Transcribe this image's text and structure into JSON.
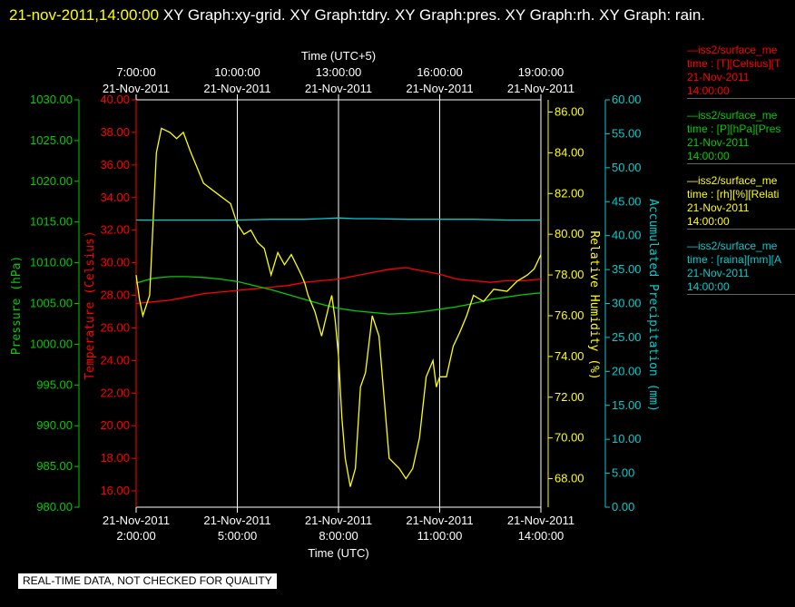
{
  "header": {
    "timestamp": "21-nov-2011,14:00:00",
    "graphs": " XY Graph:xy-grid.  XY Graph:tdry.  XY Graph:pres.  XY Graph:rh.  XY Graph: rain."
  },
  "colors": {
    "temperature": "#ff0000",
    "pressure": "#00cc00",
    "humidity": "#ffff00",
    "precip": "#00cccc",
    "grid": "#ffffff"
  },
  "legends": [
    {
      "name": "—iss2/surface_me",
      "line2": "time : [T][Celsius][T",
      "date": "21-Nov-2011",
      "time": "14:00:00",
      "color": "#ff0000"
    },
    {
      "name": "—iss2/surface_me",
      "line2": "time : [P][hPa][Pres",
      "date": "21-Nov-2011",
      "time": "14:00:00",
      "color": "#00cc00"
    },
    {
      "name": "—iss2/surface_me",
      "line2": "time : [rh][%][Relati",
      "date": "21-Nov-2011",
      "time": "14:00:00",
      "color": "#ffff00"
    },
    {
      "name": "—iss2/surface_me",
      "line2": "time : [raina][mm][A",
      "date": "21-Nov-2011",
      "time": "14:00:00",
      "color": "#00cccc"
    }
  ],
  "footer_note": "REAL-TIME DATA, NOT CHECKED FOR QUALITY",
  "chart_data": {
    "type": "line",
    "x_top_label": "Time (UTC+5)",
    "x_bottom_label": "Time (UTC)",
    "x_range_utc_hours": [
      2.0,
      14.0
    ],
    "x_ticks_bottom": [
      {
        "date": "21-Nov-2011",
        "time": "2:00:00",
        "utc_hour": 2
      },
      {
        "date": "21-Nov-2011",
        "time": "5:00:00",
        "utc_hour": 5
      },
      {
        "date": "21-Nov-2011",
        "time": "8:00:00",
        "utc_hour": 8
      },
      {
        "date": "21-Nov-2011",
        "time": "11:00:00",
        "utc_hour": 11
      },
      {
        "date": "21-Nov-2011",
        "time": "14:00:00",
        "utc_hour": 14
      }
    ],
    "x_ticks_top": [
      {
        "date": "21-Nov-2011",
        "time": "7:00:00",
        "utc_hour": 2
      },
      {
        "date": "21-Nov-2011",
        "time": "10:00:00",
        "utc_hour": 5
      },
      {
        "date": "21-Nov-2011",
        "time": "13:00:00",
        "utc_hour": 8
      },
      {
        "date": "21-Nov-2011",
        "time": "16:00:00",
        "utc_hour": 11
      },
      {
        "date": "21-Nov-2011",
        "time": "19:00:00",
        "utc_hour": 14
      }
    ],
    "axes": {
      "pressure": {
        "label": "Pressure (hPa)",
        "range": [
          980,
          1030
        ],
        "ticks": [
          "980.00",
          "985.00",
          "990.00",
          "995.00",
          "1000.00",
          "1005.00",
          "1010.00",
          "1015.00",
          "1020.00",
          "1025.00",
          "1030.00"
        ]
      },
      "temperature": {
        "label": "Temperature (Celsius)",
        "range": [
          15,
          40
        ],
        "ticks": [
          "16.00",
          "18.00",
          "20.00",
          "22.00",
          "24.00",
          "26.00",
          "28.00",
          "30.00",
          "32.00",
          "34.00",
          "36.00",
          "38.00",
          "40.00"
        ]
      },
      "humidity": {
        "label": "Relative Humidity (%)",
        "range": [
          66.6,
          86.6
        ],
        "ticks": [
          "68.00",
          "70.00",
          "72.00",
          "74.00",
          "76.00",
          "78.00",
          "80.00",
          "82.00",
          "84.00",
          "86.00"
        ]
      },
      "precip": {
        "label": "Accumulated Precipitation (mm)",
        "range": [
          0,
          60
        ],
        "ticks": [
          "0.00",
          "5.00",
          "10.00",
          "15.00",
          "20.00",
          "25.00",
          "30.00",
          "35.00",
          "40.00",
          "45.00",
          "50.00",
          "55.00",
          "60.00"
        ]
      }
    },
    "series": [
      {
        "name": "temperature",
        "axis": "temperature",
        "x": [
          2.0,
          2.5,
          3.0,
          3.5,
          4.0,
          4.5,
          5.0,
          5.5,
          6.0,
          6.5,
          7.0,
          7.5,
          8.0,
          8.5,
          9.0,
          9.5,
          10.0,
          10.5,
          11.0,
          11.5,
          12.0,
          12.5,
          13.0,
          13.5,
          14.0
        ],
        "values": [
          27.5,
          27.6,
          27.7,
          27.9,
          28.1,
          28.2,
          28.3,
          28.4,
          28.5,
          28.6,
          28.8,
          28.9,
          29.0,
          29.2,
          29.4,
          29.6,
          29.7,
          29.5,
          29.3,
          29.0,
          28.9,
          28.8,
          28.9,
          28.9,
          29.0
        ]
      },
      {
        "name": "pressure",
        "axis": "pressure",
        "x": [
          2.0,
          2.5,
          3.0,
          3.5,
          4.0,
          4.5,
          5.0,
          5.5,
          6.0,
          6.5,
          7.0,
          7.5,
          8.0,
          8.5,
          9.0,
          9.5,
          10.0,
          10.5,
          11.0,
          11.5,
          12.0,
          12.5,
          13.0,
          13.5,
          14.0
        ],
        "values": [
          1007.5,
          1008.1,
          1008.3,
          1008.3,
          1008.2,
          1008.0,
          1007.7,
          1007.2,
          1006.7,
          1006.1,
          1005.5,
          1004.9,
          1004.4,
          1004.1,
          1003.9,
          1003.7,
          1003.8,
          1004.0,
          1004.3,
          1004.6,
          1005.0,
          1005.5,
          1005.8,
          1006.1,
          1006.3
        ]
      },
      {
        "name": "humidity",
        "axis": "humidity",
        "x": [
          2.0,
          2.1,
          2.2,
          2.4,
          2.6,
          2.75,
          3.0,
          3.2,
          3.4,
          3.6,
          4.0,
          4.4,
          4.8,
          5.0,
          5.2,
          5.4,
          5.6,
          5.8,
          6.0,
          6.2,
          6.4,
          6.6,
          6.9,
          7.0,
          7.1,
          7.3,
          7.5,
          7.7,
          7.8,
          7.9,
          8.0,
          8.1,
          8.2,
          8.35,
          8.5,
          8.65,
          8.8,
          9.0,
          9.2,
          9.5,
          9.8,
          10.0,
          10.2,
          10.4,
          10.5,
          10.6,
          10.8,
          10.9,
          11.0,
          11.2,
          11.4,
          11.6,
          11.8,
          12.0,
          12.3,
          12.6,
          13.0,
          13.3,
          13.6,
          13.8,
          14.0
        ],
        "values": [
          78.0,
          76.8,
          76.0,
          77.0,
          84.0,
          85.2,
          85.0,
          84.7,
          85.0,
          84.1,
          82.5,
          82.0,
          81.5,
          80.5,
          80.0,
          80.2,
          79.6,
          79.3,
          78.0,
          79.1,
          78.5,
          79.0,
          78.0,
          77.6,
          77.0,
          76.2,
          75.0,
          76.4,
          77.0,
          75.8,
          74.0,
          71.0,
          69.0,
          67.6,
          68.5,
          72.5,
          73.2,
          76.0,
          75.0,
          69.0,
          68.5,
          68.0,
          68.5,
          70.0,
          71.5,
          73.0,
          73.8,
          72.5,
          73.0,
          73.0,
          74.5,
          75.2,
          76.0,
          77.0,
          76.7,
          77.3,
          77.2,
          77.7,
          78.0,
          78.3,
          79.0
        ]
      },
      {
        "name": "precip",
        "axis": "precip",
        "x": [
          2.0,
          3.0,
          4.0,
          5.0,
          6.0,
          7.0,
          7.5,
          8.0,
          8.5,
          9.0,
          10.0,
          11.0,
          12.0,
          13.0,
          14.0
        ],
        "values": [
          42.3,
          42.3,
          42.3,
          42.3,
          42.4,
          42.4,
          42.5,
          42.6,
          42.5,
          42.5,
          42.4,
          42.4,
          42.4,
          42.3,
          42.3
        ]
      }
    ]
  }
}
